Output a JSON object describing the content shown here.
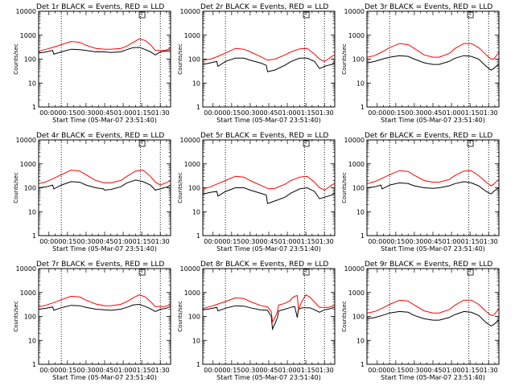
{
  "y_ticks": [
    "1",
    "10",
    "100",
    "1000",
    "10000"
  ],
  "x_ticks": [
    "00:00",
    "00:15",
    "00:30",
    "00:45",
    "01:00",
    "01:15",
    "01:30"
  ],
  "colors": {
    "events": "#000000",
    "lld": "#ff0000",
    "markers": "#000000"
  },
  "chart_data": [
    {
      "type": "line",
      "title": "Det 1r BLACK = Events, RED = LLD",
      "xlabel": "Start Time (05-Mar-07 23:51:40)",
      "ylabel": "Counts/sec",
      "yscale": "log",
      "ylim": [
        1,
        10000
      ],
      "x_unit": "minutes after 00:00",
      "xlim": [
        -8.3,
        98.3
      ],
      "grid": false,
      "legend": "title",
      "marker_lines_x": [
        10,
        74,
        90
      ],
      "series": [
        {
          "name": "Events",
          "color": "#000000",
          "x": [
            -8,
            -2,
            3,
            4,
            10,
            18,
            25,
            30,
            38,
            45,
            50,
            58,
            63,
            68,
            73,
            78,
            82,
            86,
            90,
            93,
            96,
            98
          ],
          "y": [
            180,
            200,
            230,
            160,
            200,
            260,
            250,
            230,
            200,
            200,
            190,
            200,
            250,
            300,
            310,
            250,
            200,
            150,
            200,
            210,
            220,
            240
          ]
        },
        {
          "name": "LLD",
          "color": "#ff0000",
          "x": [
            -8,
            -2,
            4,
            10,
            18,
            25,
            30,
            38,
            45,
            50,
            58,
            63,
            68,
            73,
            78,
            82,
            86,
            90,
            93,
            96,
            98
          ],
          "y": [
            220,
            260,
            320,
            400,
            550,
            500,
            380,
            280,
            260,
            260,
            280,
            350,
            500,
            700,
            600,
            400,
            230,
            230,
            230,
            250,
            300
          ]
        }
      ]
    },
    {
      "type": "line",
      "title": "Det 2r BLACK = Events, RED = LLD",
      "xlabel": "Start Time (05-Mar-07 23:51:40)",
      "ylabel": "Counts/sec",
      "yscale": "log",
      "ylim": [
        1,
        10000
      ],
      "x_unit": "minutes after 00:00",
      "xlim": [
        -8.3,
        98.3
      ],
      "grid": false,
      "legend": "title",
      "marker_lines_x": [
        10,
        74,
        90
      ],
      "series": [
        {
          "name": "Events",
          "color": "#000000",
          "x": [
            -8,
            -2,
            3,
            4,
            10,
            18,
            25,
            30,
            38,
            43,
            44,
            50,
            58,
            63,
            70,
            76,
            82,
            86,
            90,
            93,
            96,
            98
          ],
          "y": [
            60,
            70,
            80,
            50,
            80,
            110,
            110,
            90,
            70,
            55,
            30,
            35,
            55,
            80,
            110,
            110,
            80,
            40,
            50,
            55,
            60,
            70
          ]
        },
        {
          "name": "LLD",
          "color": "#ff0000",
          "x": [
            -8,
            -2,
            4,
            10,
            18,
            25,
            30,
            38,
            44,
            50,
            58,
            63,
            70,
            76,
            82,
            86,
            90,
            93,
            96,
            98
          ],
          "y": [
            90,
            100,
            130,
            180,
            280,
            260,
            200,
            130,
            90,
            100,
            150,
            200,
            270,
            280,
            160,
            100,
            80,
            100,
            130,
            150
          ]
        }
      ]
    },
    {
      "type": "line",
      "title": "Det 3r BLACK = Events, RED = LLD",
      "xlabel": "Start Time (05-Mar-07 23:51:40)",
      "ylabel": "Counts/sec",
      "yscale": "log",
      "ylim": [
        1,
        10000
      ],
      "x_unit": "minutes after 00:00",
      "xlim": [
        -8.3,
        98.3
      ],
      "grid": false,
      "legend": "title",
      "marker_lines_x": [
        10,
        74,
        90
      ],
      "series": [
        {
          "name": "Events",
          "color": "#000000",
          "x": [
            -8,
            -2,
            4,
            10,
            18,
            25,
            30,
            38,
            45,
            50,
            58,
            63,
            70,
            76,
            82,
            88,
            92,
            94,
            98
          ],
          "y": [
            70,
            80,
            100,
            120,
            140,
            130,
            100,
            70,
            60,
            60,
            80,
            110,
            140,
            130,
            100,
            50,
            35,
            40,
            60
          ]
        },
        {
          "name": "LLD",
          "color": "#ff0000",
          "x": [
            -8,
            -2,
            4,
            10,
            18,
            25,
            30,
            38,
            45,
            50,
            58,
            63,
            70,
            76,
            82,
            88,
            92,
            94,
            98
          ],
          "y": [
            120,
            140,
            200,
            300,
            450,
            400,
            280,
            150,
            120,
            120,
            170,
            280,
            450,
            450,
            300,
            150,
            100,
            100,
            180
          ]
        }
      ]
    },
    {
      "type": "line",
      "title": "Det 4r BLACK = Events, RED = LLD",
      "xlabel": "Start Time (05-Mar-07 23:51:40)",
      "ylabel": "Counts/sec",
      "yscale": "log",
      "ylim": [
        1,
        10000
      ],
      "x_unit": "minutes after 00:00",
      "xlim": [
        -8.3,
        98.3
      ],
      "grid": false,
      "legend": "title",
      "marker_lines_x": [
        10,
        74,
        90
      ],
      "series": [
        {
          "name": "Events",
          "color": "#000000",
          "x": [
            -8,
            -2,
            3,
            4,
            10,
            18,
            25,
            30,
            38,
            44,
            45,
            50,
            58,
            63,
            70,
            76,
            82,
            86,
            90,
            93,
            96,
            98
          ],
          "y": [
            100,
            110,
            130,
            90,
            130,
            180,
            170,
            130,
            100,
            90,
            80,
            85,
            110,
            160,
            210,
            180,
            130,
            80,
            90,
            100,
            110,
            130
          ]
        },
        {
          "name": "LLD",
          "color": "#ff0000",
          "x": [
            -8,
            -2,
            4,
            10,
            18,
            25,
            30,
            38,
            45,
            50,
            58,
            63,
            70,
            76,
            82,
            86,
            90,
            93,
            96,
            98
          ],
          "y": [
            150,
            180,
            250,
            350,
            550,
            500,
            350,
            200,
            160,
            160,
            200,
            300,
            500,
            550,
            300,
            170,
            130,
            150,
            170,
            200
          ]
        }
      ]
    },
    {
      "type": "line",
      "title": "Det 5r BLACK = Events, RED = LLD",
      "xlabel": "Start Time (05-Mar-07 23:51:40)",
      "ylabel": "Counts/sec",
      "yscale": "log",
      "ylim": [
        1,
        10000
      ],
      "x_unit": "minutes after 00:00",
      "xlim": [
        -8.3,
        98.3
      ],
      "grid": false,
      "legend": "title",
      "marker_lines_x": [
        10,
        74,
        90
      ],
      "series": [
        {
          "name": "Events",
          "color": "#000000",
          "x": [
            -8,
            -2,
            3,
            4,
            10,
            18,
            25,
            30,
            38,
            43,
            44,
            50,
            58,
            63,
            70,
            76,
            82,
            86,
            90,
            93,
            96,
            98
          ],
          "y": [
            55,
            65,
            70,
            45,
            70,
            100,
            100,
            80,
            60,
            50,
            22,
            28,
            40,
            60,
            90,
            100,
            70,
            35,
            40,
            45,
            50,
            60
          ]
        },
        {
          "name": "LLD",
          "color": "#ff0000",
          "x": [
            -8,
            -2,
            4,
            10,
            18,
            25,
            30,
            38,
            45,
            50,
            58,
            63,
            70,
            76,
            82,
            86,
            90,
            93,
            96,
            98
          ],
          "y": [
            90,
            110,
            150,
            200,
            300,
            280,
            200,
            130,
            90,
            95,
            140,
            200,
            280,
            300,
            170,
            100,
            80,
            100,
            130,
            150
          ]
        }
      ]
    },
    {
      "type": "line",
      "title": "Det 6r BLACK = Events, RED = LLD",
      "xlabel": "Start Time (05-Mar-07 23:51:40)",
      "ylabel": "Counts/sec",
      "yscale": "log",
      "ylim": [
        1,
        10000
      ],
      "x_unit": "minutes after 00:00",
      "xlim": [
        -8.3,
        98.3
      ],
      "grid": false,
      "legend": "title",
      "marker_lines_x": [
        10,
        74,
        90
      ],
      "series": [
        {
          "name": "Events",
          "color": "#000000",
          "x": [
            -8,
            -2,
            3,
            4,
            10,
            18,
            25,
            30,
            38,
            45,
            50,
            58,
            63,
            70,
            76,
            82,
            88,
            92,
            94,
            98
          ],
          "y": [
            100,
            110,
            130,
            90,
            130,
            160,
            150,
            120,
            100,
            95,
            100,
            120,
            150,
            180,
            160,
            120,
            70,
            55,
            70,
            100
          ]
        },
        {
          "name": "LLD",
          "color": "#ff0000",
          "x": [
            -8,
            -2,
            4,
            10,
            18,
            25,
            30,
            38,
            45,
            50,
            58,
            63,
            70,
            76,
            82,
            88,
            92,
            94,
            98
          ],
          "y": [
            150,
            180,
            250,
            350,
            520,
            480,
            330,
            200,
            170,
            170,
            220,
            330,
            500,
            520,
            320,
            170,
            120,
            140,
            220
          ]
        }
      ]
    },
    {
      "type": "line",
      "title": "Det 7r BLACK = Events, RED = LLD",
      "xlabel": "Start Time (05-Mar-07 23:51:40)",
      "ylabel": "Counts/sec",
      "yscale": "log",
      "ylim": [
        1,
        10000
      ],
      "x_unit": "minutes after 00:00",
      "xlim": [
        -8.3,
        98.3
      ],
      "grid": false,
      "legend": "title",
      "marker_lines_x": [
        10,
        74,
        90
      ],
      "series": [
        {
          "name": "Events",
          "color": "#000000",
          "x": [
            -8,
            -2,
            3,
            4,
            10,
            18,
            25,
            30,
            38,
            45,
            50,
            58,
            63,
            68,
            73,
            78,
            82,
            86,
            90,
            93,
            96,
            98
          ],
          "y": [
            200,
            220,
            250,
            180,
            230,
            290,
            280,
            240,
            200,
            190,
            180,
            200,
            240,
            300,
            320,
            260,
            210,
            160,
            200,
            210,
            230,
            260
          ]
        },
        {
          "name": "LLD",
          "color": "#ff0000",
          "x": [
            -8,
            -2,
            4,
            10,
            18,
            25,
            30,
            38,
            45,
            50,
            58,
            63,
            68,
            73,
            78,
            82,
            86,
            90,
            93,
            96,
            98
          ],
          "y": [
            250,
            300,
            380,
            500,
            700,
            650,
            480,
            330,
            280,
            280,
            320,
            420,
            600,
            800,
            650,
            420,
            260,
            260,
            260,
            280,
            350
          ]
        }
      ]
    },
    {
      "type": "line",
      "title": "Det 8r BLACK = Events, RED = LLD",
      "xlabel": "Start Time (05-Mar-07 23:51:40)",
      "ylabel": "Counts/sec",
      "yscale": "log",
      "ylim": [
        1,
        10000
      ],
      "x_unit": "minutes after 00:00",
      "xlim": [
        -8.3,
        98.3
      ],
      "grid": false,
      "legend": "title",
      "marker_lines_x": [
        10,
        74,
        90
      ],
      "series": [
        {
          "name": "Events",
          "color": "#000000",
          "x": [
            -8,
            -2,
            3,
            4,
            10,
            18,
            25,
            30,
            38,
            44,
            47,
            48,
            50,
            52,
            53,
            58,
            62,
            64,
            66,
            68,
            69,
            72,
            78,
            82,
            86,
            90,
            93,
            96,
            98
          ],
          "y": [
            190,
            210,
            240,
            170,
            220,
            280,
            270,
            230,
            190,
            180,
            100,
            30,
            50,
            90,
            170,
            200,
            230,
            250,
            260,
            90,
            200,
            230,
            230,
            190,
            150,
            190,
            200,
            220,
            250
          ]
        },
        {
          "name": "LLD",
          "color": "#ff0000",
          "x": [
            -8,
            -2,
            4,
            10,
            18,
            25,
            30,
            38,
            44,
            47,
            48,
            50,
            52,
            53,
            58,
            62,
            64,
            66,
            68,
            69,
            72,
            75,
            78,
            82,
            86,
            90,
            93,
            96,
            98
          ],
          "y": [
            220,
            260,
            330,
            420,
            600,
            560,
            420,
            290,
            250,
            160,
            60,
            90,
            160,
            300,
            350,
            450,
            600,
            700,
            750,
            200,
            450,
            800,
            650,
            400,
            240,
            240,
            240,
            260,
            320
          ]
        }
      ]
    },
    {
      "type": "line",
      "title": "Det 9r BLACK = Events, RED = LLD",
      "xlabel": "Start Time (05-Mar-07 23:51:40)",
      "ylabel": "Counts/sec",
      "yscale": "log",
      "ylim": [
        1,
        10000
      ],
      "x_unit": "minutes after 00:00",
      "xlim": [
        -8.3,
        98.3
      ],
      "grid": false,
      "legend": "title",
      "marker_lines_x": [
        10,
        74,
        90
      ],
      "series": [
        {
          "name": "Events",
          "color": "#000000",
          "x": [
            -8,
            -2,
            4,
            10,
            18,
            25,
            30,
            38,
            45,
            50,
            58,
            63,
            70,
            76,
            82,
            88,
            92,
            94,
            98
          ],
          "y": [
            80,
            90,
            110,
            140,
            160,
            150,
            110,
            80,
            70,
            70,
            90,
            120,
            160,
            150,
            110,
            55,
            40,
            45,
            70
          ]
        },
        {
          "name": "LLD",
          "color": "#ff0000",
          "x": [
            -8,
            -2,
            4,
            10,
            18,
            25,
            30,
            38,
            45,
            50,
            58,
            63,
            70,
            76,
            82,
            88,
            92,
            94,
            98
          ],
          "y": [
            140,
            160,
            220,
            320,
            480,
            440,
            300,
            170,
            140,
            140,
            190,
            300,
            480,
            480,
            320,
            160,
            110,
            110,
            200
          ]
        }
      ]
    }
  ]
}
